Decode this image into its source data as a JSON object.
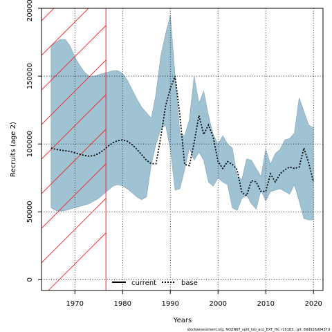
{
  "chart_data": {
    "type": "area",
    "xlabel": "Years",
    "ylabel": "Recruits (age 2)",
    "xlim": [
      1963,
      2022
    ],
    "ylim": [
      -8000,
      200000
    ],
    "x_ticks": [
      1970,
      1980,
      1990,
      2000,
      2010,
      2020
    ],
    "y_ticks": [
      0,
      50000,
      100000,
      150000,
      200000
    ],
    "x_tick_labels": [
      "1970",
      "1980",
      "1990",
      "2000",
      "2010",
      "2020"
    ],
    "y_tick_labels": [
      "0",
      "50000",
      "100000",
      "150000",
      "200000"
    ],
    "grid": true,
    "hatched_region": {
      "x_start": 1963,
      "x_end": 1976.5,
      "color": "#ee2222"
    },
    "band": {
      "color": "#a0c3d4",
      "x": [
        1965,
        1966,
        1967,
        1968,
        1969,
        1970,
        1971,
        1972,
        1973,
        1974,
        1975,
        1976,
        1977,
        1978,
        1979,
        1980,
        1981,
        1982,
        1983,
        1984,
        1985,
        1986,
        1987,
        1988,
        1989,
        1990,
        1991,
        1992,
        1993,
        1994,
        1995,
        1996,
        1997,
        1998,
        1999,
        2000,
        2001,
        2002,
        2003,
        2004,
        2005,
        2006,
        2007,
        2008,
        2009,
        2010,
        2011,
        2012,
        2013,
        2014,
        2015,
        2016,
        2017,
        2018,
        2019,
        2020
      ],
      "upper": [
        172000,
        175000,
        177000,
        177000,
        172000,
        164000,
        158000,
        153000,
        150000,
        150000,
        151000,
        152000,
        153000,
        154000,
        154000,
        152000,
        147000,
        140000,
        133000,
        127000,
        123000,
        119000,
        137000,
        165000,
        181000,
        195000,
        150000,
        108000,
        106000,
        118000,
        150000,
        130000,
        139000,
        121000,
        107000,
        100000,
        106000,
        100000,
        97000,
        76000,
        74000,
        89000,
        88000,
        82000,
        76000,
        96000,
        85000,
        93000,
        96000,
        103000,
        104000,
        108000,
        134000,
        124000,
        114000,
        112000
      ],
      "lower": [
        53000,
        51000,
        50500,
        51000,
        52000,
        53000,
        54000,
        55000,
        56000,
        58000,
        60000,
        63000,
        66000,
        69000,
        70000,
        69000,
        67000,
        64000,
        61000,
        59000,
        61000,
        85000,
        100000,
        111000,
        114000,
        96000,
        66000,
        67000,
        81000,
        97000,
        88000,
        94000,
        88000,
        72000,
        69000,
        75000,
        72000,
        70000,
        53000,
        51000,
        60000,
        62000,
        56000,
        52000,
        66000,
        58000,
        65000,
        66000,
        67000,
        65000,
        63000,
        70000,
        58000,
        45000,
        44000,
        44000
      ]
    },
    "series": [
      {
        "name": "base",
        "style": "dotted",
        "color": "#000000",
        "x": [
          1965,
          1966,
          1967,
          1968,
          1969,
          1970,
          1971,
          1972,
          1973,
          1974,
          1975,
          1976,
          1977,
          1978,
          1979,
          1980,
          1981,
          1982,
          1983,
          1984,
          1985,
          1986,
          1987,
          1988,
          1989,
          1990,
          1991,
          1992,
          1993,
          1994,
          1995,
          1996,
          1997,
          1998,
          1999,
          2000,
          2001,
          2002,
          2003,
          2004,
          2005,
          2006,
          2007,
          2008,
          2009,
          2010,
          2011,
          2012,
          2013,
          2014,
          2015,
          2016,
          2017,
          2018,
          2019,
          2020
        ],
        "y": [
          97000,
          96000,
          95500,
          95000,
          94500,
          93500,
          92500,
          91500,
          91000,
          91500,
          93000,
          95500,
          98500,
          101000,
          102500,
          103000,
          102000,
          99500,
          96000,
          92000,
          88000,
          85500,
          85500,
          105000,
          128000,
          141000,
          150000,
          121000,
          85000,
          84000,
          101000,
          121000,
          107000,
          114000,
          105000,
          87000,
          82000,
          87000,
          85000,
          81000,
          64000,
          62000,
          73000,
          72000,
          65000,
          65000,
          78000,
          72000,
          78000,
          81000,
          83000,
          82000,
          83000,
          97000,
          86000,
          72000
        ]
      }
    ],
    "legend": {
      "position": "bottom-center",
      "entries": [
        {
          "label": "current",
          "style": "solid",
          "color": "#000000"
        },
        {
          "label": "base",
          "style": "dotted",
          "color": "#000000"
        }
      ]
    }
  },
  "footer": {
    "credit": "stockassessment.org, NOZN67_split_tsb_aco_EXT_ffx, r15183 , git: 69d926d0437d"
  }
}
